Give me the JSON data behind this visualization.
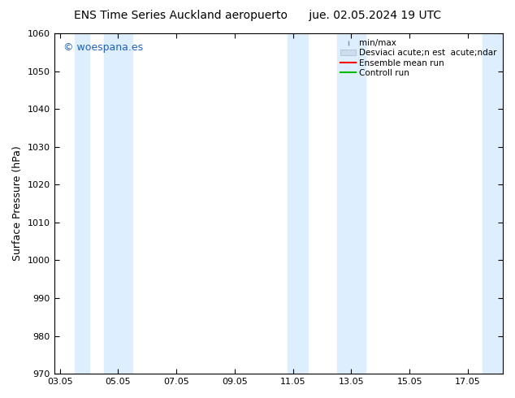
{
  "title_left": "ENS Time Series Auckland aeropuerto",
  "title_right": "jue. 02.05.2024 19 UTC",
  "ylabel": "Surface Pressure (hPa)",
  "ylim": [
    970,
    1060
  ],
  "yticks": [
    970,
    980,
    990,
    1000,
    1010,
    1020,
    1030,
    1040,
    1050,
    1060
  ],
  "xticks_labels": [
    "03.05",
    "05.05",
    "07.05",
    "09.05",
    "11.05",
    "13.05",
    "15.05",
    "17.05"
  ],
  "xticks_pos": [
    0,
    2,
    4,
    6,
    8,
    10,
    12,
    14
  ],
  "xlim": [
    -0.2,
    15.2
  ],
  "shaded_bands": [
    {
      "x_start": 0.5,
      "x_end": 1.0
    },
    {
      "x_start": 1.5,
      "x_end": 2.5
    },
    {
      "x_start": 7.8,
      "x_end": 8.5
    },
    {
      "x_start": 9.5,
      "x_end": 10.5
    },
    {
      "x_start": 14.5,
      "x_end": 15.2
    }
  ],
  "watermark_text": "© woespana.es",
  "watermark_color": "#2060c0",
  "bg_color": "#ffffff",
  "plot_bg_color": "#ffffff",
  "shading_color": "#ddeeff",
  "legend_labels": [
    "min/max",
    "Desviaci acute;n est  acute;ndar",
    "Ensemble mean run",
    "Controll run"
  ],
  "legend_colors": [
    "#a0b0c0",
    "#c8ddf0",
    "#ff0000",
    "#00bb00"
  ],
  "font_size_title": 10,
  "font_size_labels": 9,
  "font_size_ticks": 8,
  "font_size_legend": 7.5,
  "font_size_watermark": 9
}
